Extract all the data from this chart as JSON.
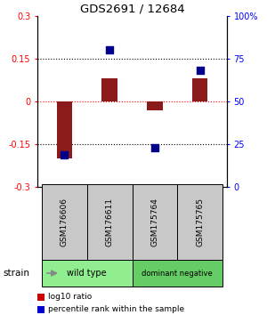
{
  "title": "GDS2691 / 12684",
  "samples": [
    "GSM176606",
    "GSM176611",
    "GSM175764",
    "GSM175765"
  ],
  "log10_ratio": [
    -0.2,
    0.08,
    -0.03,
    0.08
  ],
  "percentile_rank": [
    19,
    80,
    23,
    68
  ],
  "bar_color": "#8B1A1A",
  "dot_color": "#00008B",
  "left_ylim": [
    -0.3,
    0.3
  ],
  "right_ylim": [
    0,
    100
  ],
  "left_yticks": [
    -0.3,
    -0.15,
    0,
    0.15,
    0.3
  ],
  "right_yticks": [
    0,
    25,
    50,
    75,
    100
  ],
  "right_yticklabels": [
    "0",
    "25",
    "50",
    "75",
    "100%"
  ],
  "groups": [
    {
      "label": "wild type",
      "indices": [
        0,
        1
      ],
      "color": "#90EE90"
    },
    {
      "label": "dominant negative",
      "indices": [
        2,
        3
      ],
      "color": "#66CC66"
    }
  ],
  "strain_label": "strain",
  "legend_items": [
    {
      "color": "#CC0000",
      "label": "log10 ratio"
    },
    {
      "color": "#0000CC",
      "label": "percentile rank within the sample"
    }
  ],
  "bar_width": 0.35,
  "dot_size": 40,
  "sample_box_color": "#C8C8C8",
  "fig_bg": "#FFFFFF"
}
